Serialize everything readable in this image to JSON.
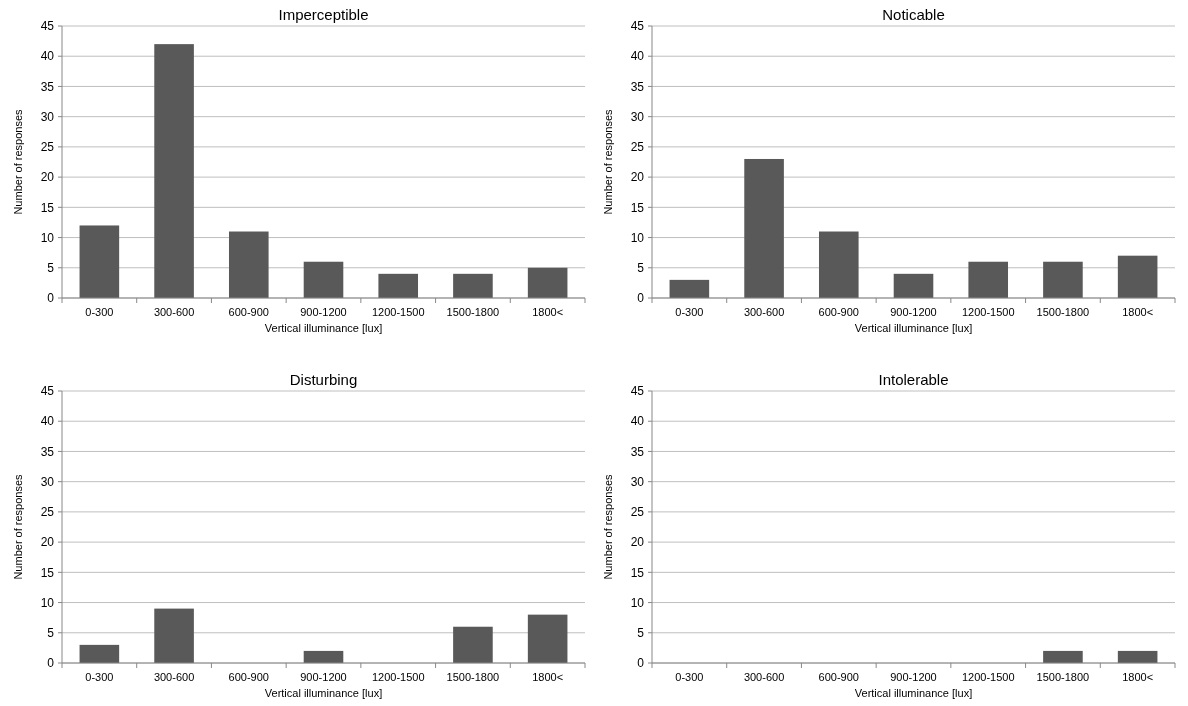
{
  "chart_data": [
    {
      "type": "bar",
      "title": "Imperceptible",
      "xlabel": "Vertical illuminance [lux]",
      "ylabel": "Number of responses",
      "categories": [
        "0-300",
        "300-600",
        "600-900",
        "900-1200",
        "1200-1500",
        "1500-1800",
        "1800<"
      ],
      "values": [
        12,
        42,
        11,
        6,
        4,
        4,
        5
      ],
      "color": "#595959",
      "ylim": [
        0,
        45
      ],
      "yticks": [
        0,
        5,
        10,
        15,
        20,
        25,
        30,
        35,
        40,
        45
      ],
      "grid": "y"
    },
    {
      "type": "bar",
      "title": "Noticable",
      "xlabel": "Vertical illuminance [lux]",
      "ylabel": "Number of responses",
      "categories": [
        "0-300",
        "300-600",
        "600-900",
        "900-1200",
        "1200-1500",
        "1500-1800",
        "1800<"
      ],
      "values": [
        3,
        23,
        11,
        4,
        6,
        6,
        7
      ],
      "color": "#595959",
      "ylim": [
        0,
        45
      ],
      "yticks": [
        0,
        5,
        10,
        15,
        20,
        25,
        30,
        35,
        40,
        45
      ],
      "grid": "y"
    },
    {
      "type": "bar",
      "title": "Disturbing",
      "xlabel": "Vertical illuminance [lux]",
      "ylabel": "Number of responses",
      "categories": [
        "0-300",
        "300-600",
        "600-900",
        "900-1200",
        "1200-1500",
        "1500-1800",
        "1800<"
      ],
      "values": [
        3,
        9,
        0,
        2,
        0,
        6,
        8
      ],
      "color": "#595959",
      "ylim": [
        0,
        45
      ],
      "yticks": [
        0,
        5,
        10,
        15,
        20,
        25,
        30,
        35,
        40,
        45
      ],
      "grid": "y"
    },
    {
      "type": "bar",
      "title": "Intolerable",
      "xlabel": "Vertical illuminance [lux]",
      "ylabel": "Number of responses",
      "categories": [
        "0-300",
        "300-600",
        "600-900",
        "900-1200",
        "1200-1500",
        "1500-1800",
        "1800<"
      ],
      "values": [
        0,
        0,
        0,
        0,
        0,
        2,
        2
      ],
      "color": "#595959",
      "ylim": [
        0,
        45
      ],
      "yticks": [
        0,
        5,
        10,
        15,
        20,
        25,
        30,
        35,
        40,
        45
      ],
      "grid": "y"
    }
  ]
}
